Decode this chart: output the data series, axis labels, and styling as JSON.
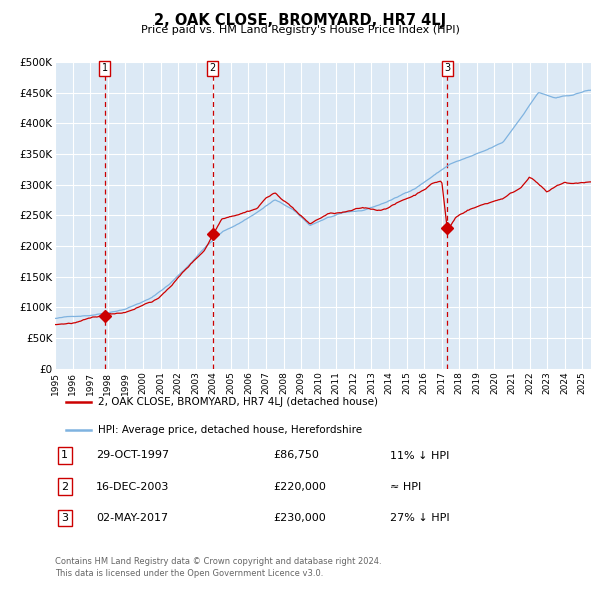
{
  "title": "2, OAK CLOSE, BROMYARD, HR7 4LJ",
  "subtitle": "Price paid vs. HM Land Registry's House Price Index (HPI)",
  "bg_color": "#dce9f5",
  "hpi_color": "#7fb3e0",
  "price_color": "#cc0000",
  "vline_color": "#cc0000",
  "transactions": [
    {
      "num": 1,
      "date": "29-OCT-1997",
      "year": 1997.83,
      "price": 86750,
      "hpi_rel": "11% ↓ HPI"
    },
    {
      "num": 2,
      "date": "16-DEC-2003",
      "year": 2003.96,
      "price": 220000,
      "hpi_rel": "≈ HPI"
    },
    {
      "num": 3,
      "date": "02-MAY-2017",
      "year": 2017.33,
      "price": 230000,
      "hpi_rel": "27% ↓ HPI"
    }
  ],
  "xlim": [
    1995.0,
    2025.5
  ],
  "ylim": [
    0,
    500000
  ],
  "yticks": [
    0,
    50000,
    100000,
    150000,
    200000,
    250000,
    300000,
    350000,
    400000,
    450000,
    500000
  ],
  "ytick_labels": [
    "£0",
    "£50K",
    "£100K",
    "£150K",
    "£200K",
    "£250K",
    "£300K",
    "£350K",
    "£400K",
    "£450K",
    "£500K"
  ],
  "xticks": [
    1995,
    1996,
    1997,
    1998,
    1999,
    2000,
    2001,
    2002,
    2003,
    2004,
    2005,
    2006,
    2007,
    2008,
    2009,
    2010,
    2011,
    2012,
    2013,
    2014,
    2015,
    2016,
    2017,
    2018,
    2019,
    2020,
    2021,
    2022,
    2023,
    2024,
    2025
  ],
  "footer1": "Contains HM Land Registry data © Crown copyright and database right 2024.",
  "footer2": "This data is licensed under the Open Government Licence v3.0.",
  "legend_line1": "2, OAK CLOSE, BROMYARD, HR7 4LJ (detached house)",
  "legend_line2": "HPI: Average price, detached house, Herefordshire",
  "trans_years": [
    1997.83,
    2003.96,
    2017.33
  ],
  "trans_prices": [
    86750,
    220000,
    230000
  ]
}
